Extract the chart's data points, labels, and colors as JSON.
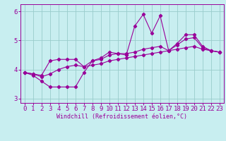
{
  "x": [
    0,
    1,
    2,
    3,
    4,
    5,
    6,
    7,
    8,
    9,
    10,
    11,
    12,
    13,
    14,
    15,
    16,
    17,
    18,
    19,
    20,
    21,
    22,
    23
  ],
  "line1": [
    3.9,
    3.8,
    3.6,
    3.4,
    3.4,
    3.4,
    3.4,
    3.9,
    4.3,
    4.4,
    4.6,
    4.55,
    4.5,
    5.5,
    5.9,
    5.25,
    5.85,
    4.65,
    4.9,
    5.2,
    5.2,
    4.8,
    4.65,
    4.6
  ],
  "line2": [
    3.9,
    3.85,
    3.8,
    4.3,
    4.35,
    4.35,
    4.35,
    4.1,
    4.3,
    4.35,
    4.5,
    4.55,
    4.55,
    4.6,
    4.7,
    4.75,
    4.8,
    4.65,
    4.85,
    5.05,
    5.1,
    4.75,
    4.65,
    4.6
  ],
  "line3": [
    3.9,
    3.85,
    3.75,
    3.85,
    4.0,
    4.1,
    4.15,
    4.1,
    4.15,
    4.2,
    4.3,
    4.35,
    4.4,
    4.45,
    4.5,
    4.55,
    4.6,
    4.65,
    4.7,
    4.75,
    4.8,
    4.7,
    4.65,
    4.6
  ],
  "line_color": "#990099",
  "bg_color": "#c8eef0",
  "grid_color": "#99cccc",
  "xlabel": "Windchill (Refroidissement éolien,°C)",
  "ylim": [
    2.85,
    6.25
  ],
  "xlim": [
    -0.5,
    23.5
  ],
  "yticks": [
    3,
    4,
    5,
    6
  ],
  "xticks": [
    0,
    1,
    2,
    3,
    4,
    5,
    6,
    7,
    8,
    9,
    10,
    11,
    12,
    13,
    14,
    15,
    16,
    17,
    18,
    19,
    20,
    21,
    22,
    23
  ],
  "xlabel_fontsize": 6.0,
  "tick_fontsize": 6.5,
  "marker_size": 2.2,
  "line_width": 0.8
}
